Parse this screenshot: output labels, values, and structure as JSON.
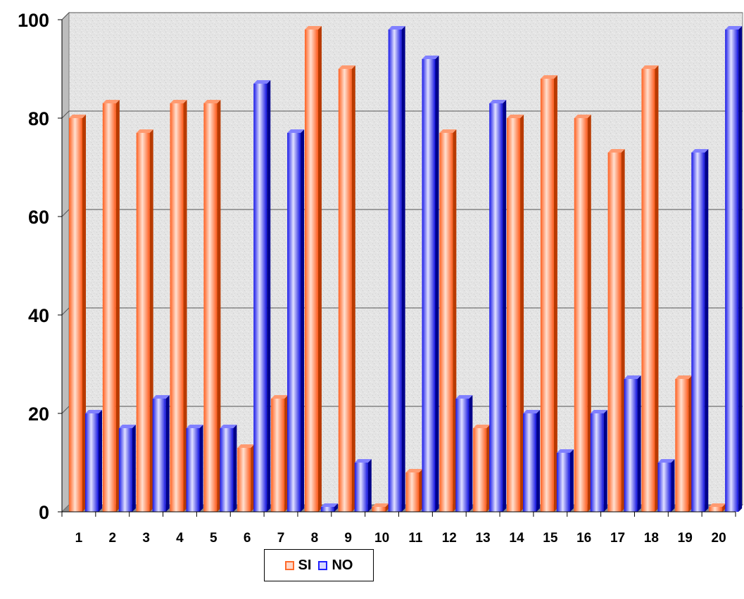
{
  "chart_data": {
    "type": "bar",
    "categories": [
      "1",
      "2",
      "3",
      "4",
      "5",
      "6",
      "7",
      "8",
      "9",
      "10",
      "11",
      "12",
      "13",
      "14",
      "15",
      "16",
      "17",
      "18",
      "19",
      "20"
    ],
    "series": [
      {
        "name": "SI",
        "color": "#ff6a2a",
        "values": [
          80,
          83,
          77,
          83,
          83,
          13,
          23,
          98,
          90,
          1,
          8,
          77,
          17,
          80,
          88,
          80,
          73,
          90,
          27,
          1
        ]
      },
      {
        "name": "NO",
        "color": "#2020ff",
        "values": [
          20,
          17,
          23,
          17,
          17,
          87,
          77,
          1,
          10,
          98,
          92,
          23,
          83,
          20,
          12,
          20,
          27,
          10,
          73,
          98
        ]
      }
    ],
    "yticks": [
      "0",
      "20",
      "40",
      "60",
      "80",
      "100"
    ],
    "ylim": [
      0,
      100
    ],
    "grid": true,
    "legend_position": "bottom",
    "title": "",
    "xlabel": "",
    "ylabel": ""
  }
}
